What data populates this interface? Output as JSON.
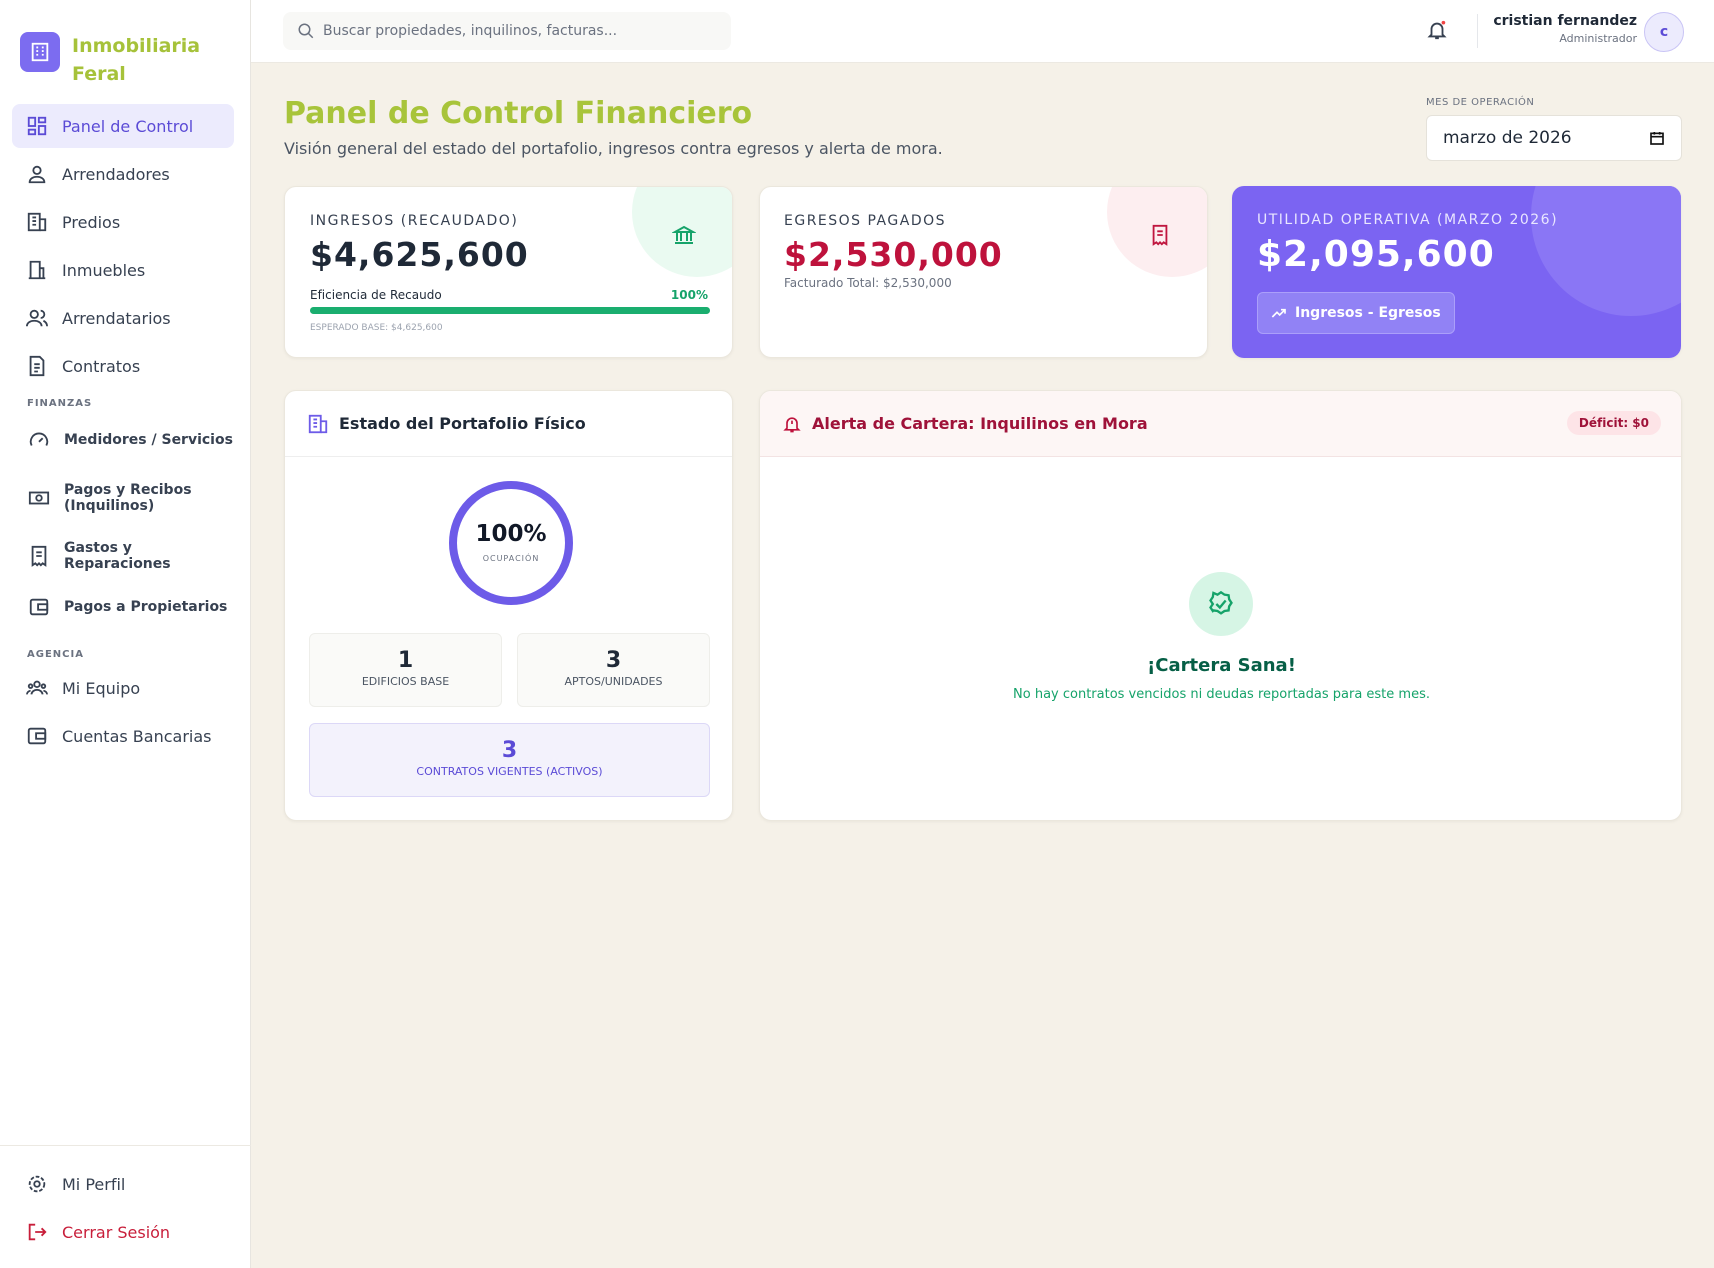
{
  "sidebar": {
    "brand": "Inmobiliaria Feral",
    "main": [
      "Panel de Control",
      "Arrendadores",
      "Predios",
      "Inmuebles",
      "Arrendatarios",
      "Contratos"
    ],
    "finanzas": {
      "title": "FINANZAS",
      "items": [
        "Medidores / Servicios",
        "Pagos y Recibos (Inquilinos)",
        "Gastos y Reparaciones",
        "Pagos a Propietarios"
      ]
    },
    "agencia": {
      "title": "AGENCIA",
      "items": [
        "Mi Equipo",
        "Cuentas Bancarias"
      ]
    },
    "footer": [
      "Mi Perfil",
      "Cerrar Sesión"
    ]
  },
  "header": {
    "search_placeholder": "Buscar propiedades, inquilinos, facturas...",
    "user_name": "cristian fernandez",
    "user_role": "Administrador",
    "avatar": "c"
  },
  "page": {
    "title": "Panel de Control Financiero",
    "subtitle": "Visión general del estado del portafolio, ingresos contra egresos y alerta de mora.",
    "month_label": "MES DE OPERACIÓN",
    "month_value": "marzo de 2026"
  },
  "cards": {
    "income": {
      "label": "INGRESOS (RECAUDADO)",
      "amount": "$4,625,600",
      "efficiency_label": "Eficiencia de Recaudo",
      "efficiency": {
        "value": 100,
        "label": "100%"
      },
      "expected": "ESPERADO BASE: $4,625,600"
    },
    "expenses": {
      "label": "EGRESOS PAGADOS",
      "amount": "$2,530,000",
      "note": "Facturado Total: $2,530,000"
    },
    "utility": {
      "label": "UTILIDAD OPERATIVA (MARZO 2026)",
      "amount": "$2,095,600",
      "button": "Ingresos - Egresos"
    }
  },
  "portfolio": {
    "title": "Estado del Portafolio Físico",
    "occupancy": {
      "value": 100,
      "label": "100%"
    },
    "occupancy_label": "OCUPACIÓN",
    "stats": [
      {
        "value": 1,
        "label": "EDIFICIOS BASE"
      },
      {
        "value": 3,
        "label": "APTOS/UNIDADES"
      }
    ],
    "contracts": {
      "value": 3,
      "label": "CONTRATOS VIGENTES (ACTIVOS)"
    }
  },
  "alert": {
    "title": "Alerta de Cartera: Inquilinos en Mora",
    "badge": "Déficit: $0",
    "empty_title": "¡Cartera Sana!",
    "empty_message": "No hay contratos vencidos ni deudas reportadas para este mes."
  }
}
